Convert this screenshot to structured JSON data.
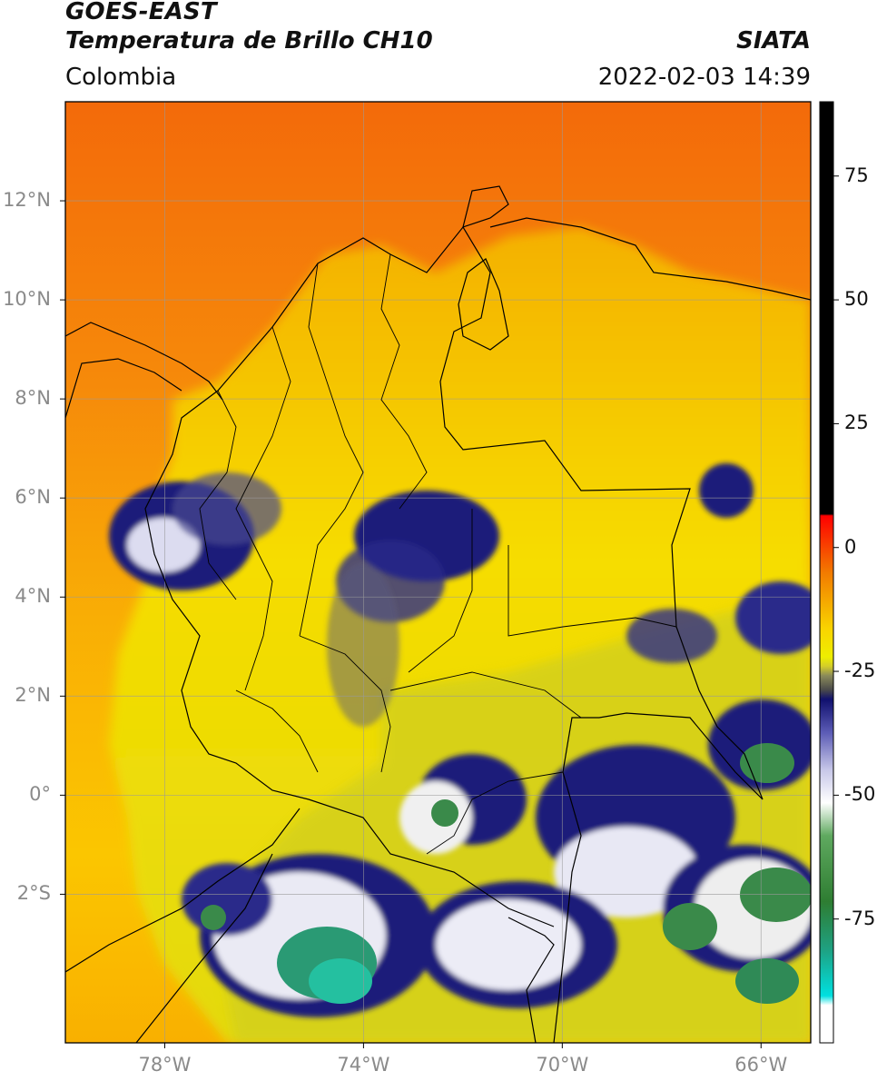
{
  "header": {
    "satellite": "GOES-EAST",
    "product": "Temperatura de Brillo CH10",
    "region": "Colombia",
    "brand": "SIATA",
    "timestamp": "2022-02-03 14:39"
  },
  "map": {
    "lon_range": [
      -80,
      -65
    ],
    "lat_range": [
      -5,
      14
    ],
    "lat_labels": [
      {
        "lat": 12,
        "text": "12°N"
      },
      {
        "lat": 10,
        "text": "10°N"
      },
      {
        "lat": 8,
        "text": "8°N"
      },
      {
        "lat": 6,
        "text": "6°N"
      },
      {
        "lat": 4,
        "text": "4°N"
      },
      {
        "lat": 2,
        "text": "2°N"
      },
      {
        "lat": 0,
        "text": "0°"
      },
      {
        "lat": -2,
        "text": "2°S"
      }
    ],
    "lon_labels": [
      {
        "lon": -78,
        "text": "78°W"
      },
      {
        "lon": -74,
        "text": "74°W"
      },
      {
        "lon": -70,
        "text": "70°W"
      },
      {
        "lon": -66,
        "text": "66°W"
      }
    ],
    "colors": {
      "warm_ocean": "#f36a0a",
      "warm_land": "#f9b500",
      "mid": "#f4ec00",
      "olive": "#d6d21a",
      "deep_blue": "#1a1a7a",
      "white": "#f4f4f4",
      "green": "#3a8a3a",
      "teal": "#20c8a0"
    }
  },
  "colorbar": {
    "range": [
      -100,
      90
    ],
    "ticks": [
      {
        "value": 75,
        "text": "75"
      },
      {
        "value": 50,
        "text": "50"
      },
      {
        "value": 25,
        "text": "25"
      },
      {
        "value": 0,
        "text": "0"
      },
      {
        "value": -25,
        "text": "-25"
      },
      {
        "value": -50,
        "text": "-50"
      },
      {
        "value": -75,
        "text": "-75"
      }
    ]
  }
}
